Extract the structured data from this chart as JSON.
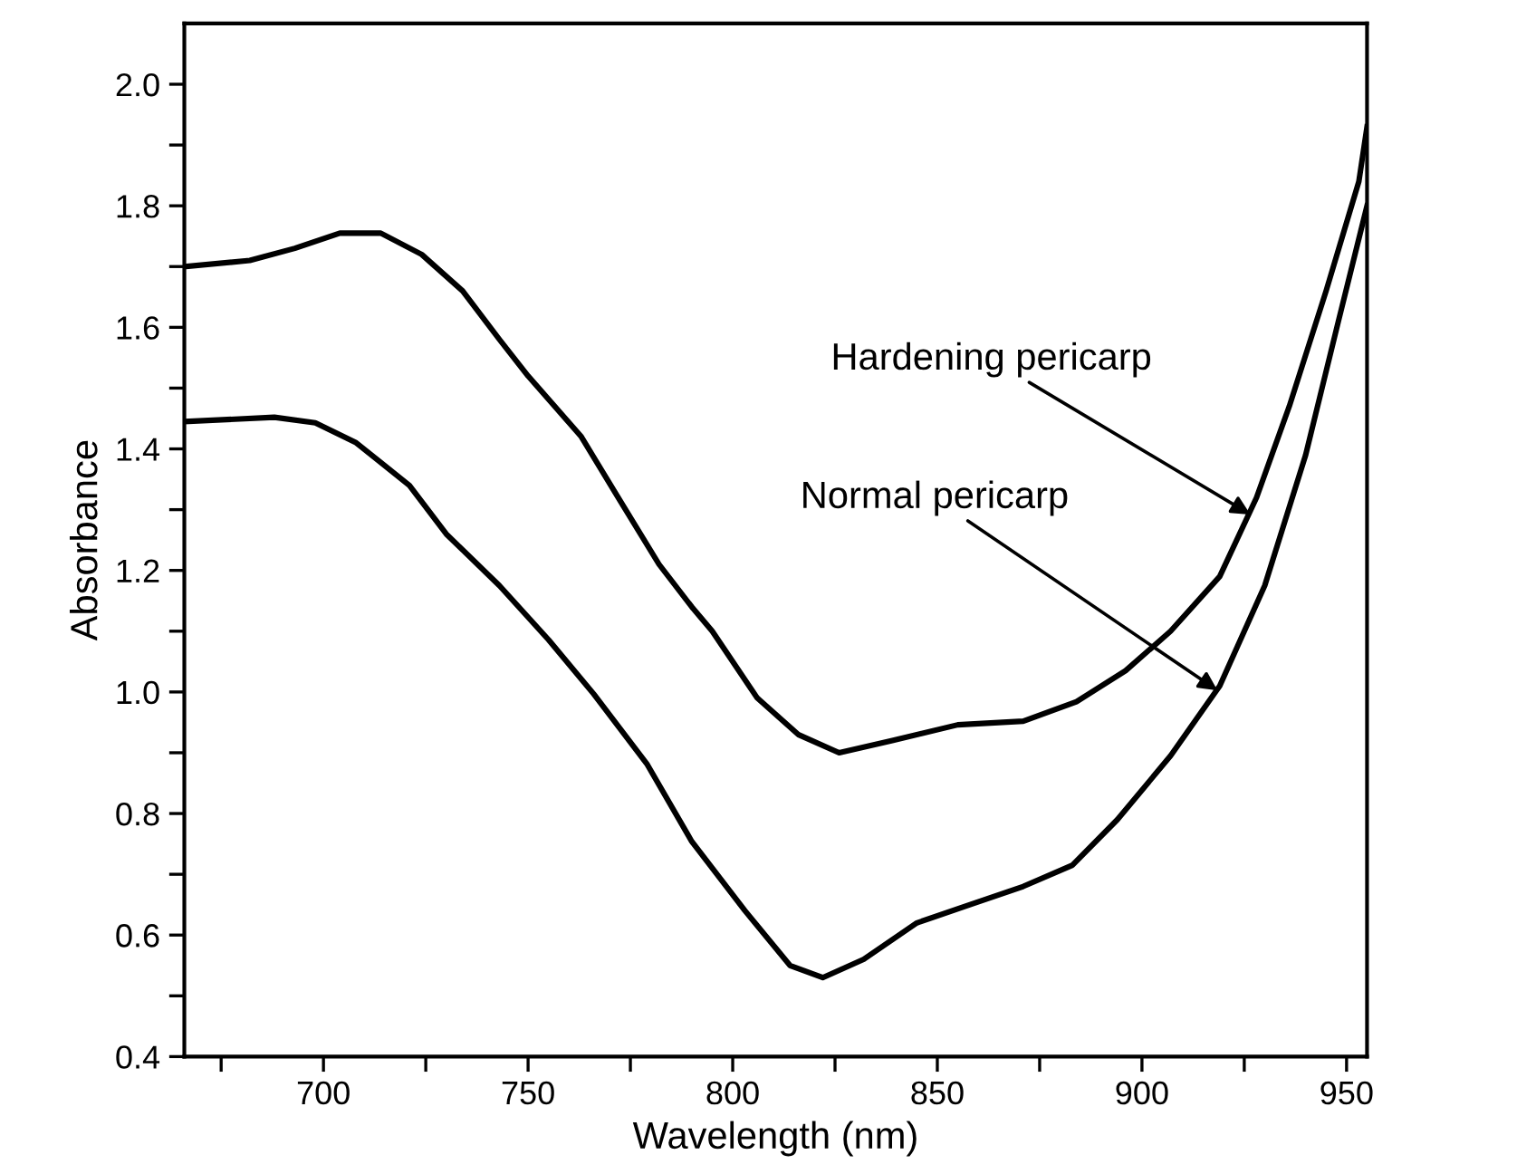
{
  "chart_data": {
    "type": "line",
    "xlabel": "Wavelength (nm)",
    "ylabel": "Absorbance",
    "xlim": [
      666,
      955
    ],
    "ylim": [
      0.4,
      2.1
    ],
    "xticks": [
      {
        "value": 675,
        "label": null
      },
      700,
      {
        "value": 725,
        "label": null
      },
      750,
      {
        "value": 775,
        "label": null
      },
      800,
      {
        "value": 825,
        "label": null
      },
      850,
      {
        "value": 875,
        "label": null
      },
      900,
      {
        "value": 925,
        "label": null
      },
      950
    ],
    "yticks": [
      0.4,
      {
        "value": 0.5,
        "label": null
      },
      0.6,
      {
        "value": 0.7,
        "label": null
      },
      0.8,
      {
        "value": 0.9,
        "label": null
      },
      {
        "value": 1.0,
        "label": "1.0"
      },
      {
        "value": 1.1,
        "label": null
      },
      1.2,
      {
        "value": 1.3,
        "label": null
      },
      1.4,
      {
        "value": 1.5,
        "label": null
      },
      1.6,
      {
        "value": 1.7,
        "label": null
      },
      1.8,
      {
        "value": 1.9,
        "label": null
      },
      {
        "value": 2.0,
        "label": "2.0"
      }
    ],
    "grid": false,
    "legend": false,
    "marker": "none",
    "line_style": "solid",
    "series": [
      {
        "color": "#000000",
        "x": [
          666,
          682,
          693,
          704,
          714,
          724,
          734,
          743,
          750,
          763,
          772,
          782,
          790,
          795,
          806,
          816,
          826,
          839,
          855,
          871,
          884,
          896,
          907,
          919,
          928,
          936,
          945,
          953,
          955
        ],
        "values": [
          1.7,
          1.71,
          1.73,
          1.755,
          1.755,
          1.72,
          1.66,
          1.58,
          1.52,
          1.42,
          1.32,
          1.21,
          1.14,
          1.1,
          0.99,
          0.93,
          0.9,
          0.92,
          0.946,
          0.952,
          0.984,
          1.035,
          1.1,
          1.19,
          1.32,
          1.47,
          1.66,
          1.84,
          1.93
        ]
      },
      {
        "color": "#000000",
        "x": [
          666,
          688,
          698,
          708,
          721,
          730,
          743,
          755,
          766,
          779,
          790,
          803,
          814,
          822,
          832,
          845,
          858,
          871,
          883,
          894,
          907,
          919,
          930,
          940,
          948,
          955
        ],
        "values": [
          1.445,
          1.452,
          1.443,
          1.41,
          1.34,
          1.26,
          1.175,
          1.086,
          0.997,
          0.882,
          0.754,
          0.64,
          0.55,
          0.53,
          0.56,
          0.62,
          0.65,
          0.68,
          0.715,
          0.79,
          0.895,
          1.01,
          1.175,
          1.39,
          1.61,
          1.8
        ]
      }
    ],
    "annotations": [
      {
        "text": "Hardening pericarp",
        "x": 927,
        "y": 1.29
      },
      {
        "text": "Normal pericarp",
        "x": 919,
        "y": 1.0
      }
    ]
  }
}
